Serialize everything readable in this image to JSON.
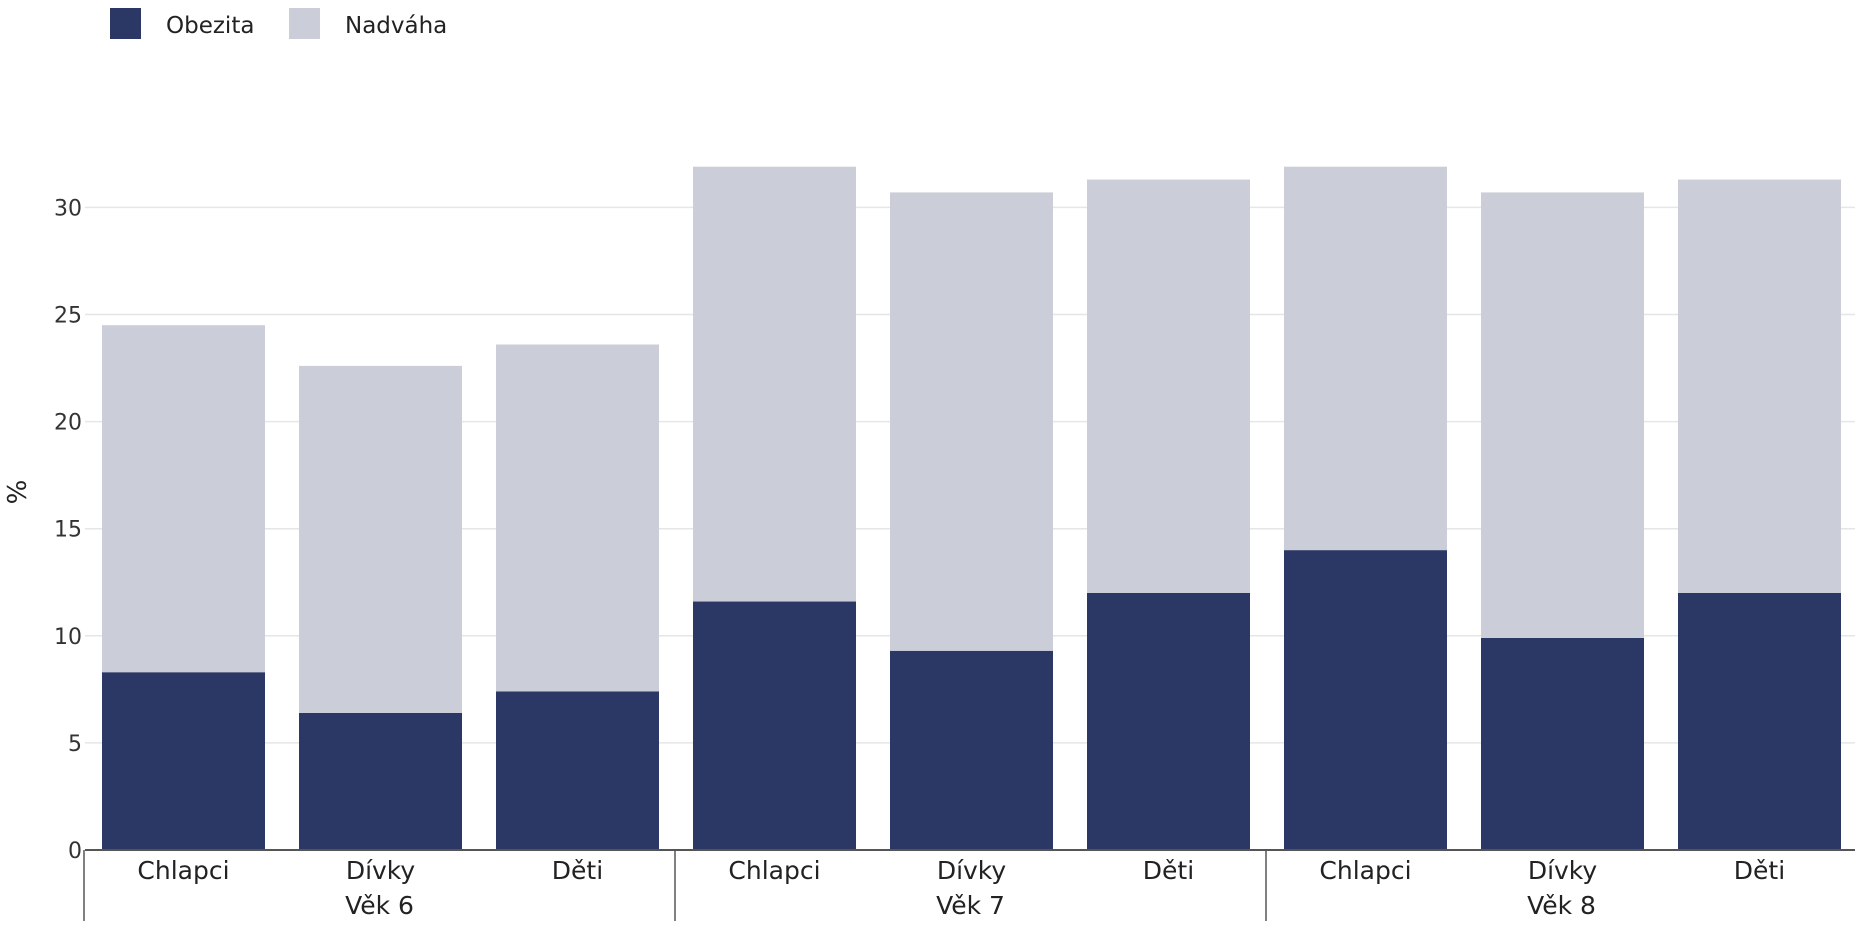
{
  "chart_data": {
    "type": "bar",
    "stacked": true,
    "ylabel": "%",
    "ylim": [
      0,
      32
    ],
    "yticks": [
      0,
      5,
      10,
      15,
      20,
      25,
      30
    ],
    "grid": true,
    "legend_position": "top-left",
    "colors": {
      "Obezita": "#2b3765",
      "Nadváha": "#cbcdd9"
    },
    "groups": [
      {
        "label": "Věk 6",
        "categories": [
          "Chlapci",
          "Dívky",
          "Děti"
        ]
      },
      {
        "label": "Věk 7",
        "categories": [
          "Chlapci",
          "Dívky",
          "Děti"
        ]
      },
      {
        "label": "Věk 8",
        "categories": [
          "Chlapci",
          "Dívky",
          "Děti"
        ]
      }
    ],
    "series": [
      {
        "name": "Obezita",
        "values": [
          8.3,
          6.4,
          7.4,
          11.6,
          9.3,
          12.0,
          14.0,
          9.9,
          12.0
        ]
      },
      {
        "name": "Nadváha",
        "values": [
          16.2,
          16.2,
          16.2,
          20.3,
          21.4,
          19.3,
          17.9,
          20.8,
          19.3
        ]
      }
    ]
  }
}
